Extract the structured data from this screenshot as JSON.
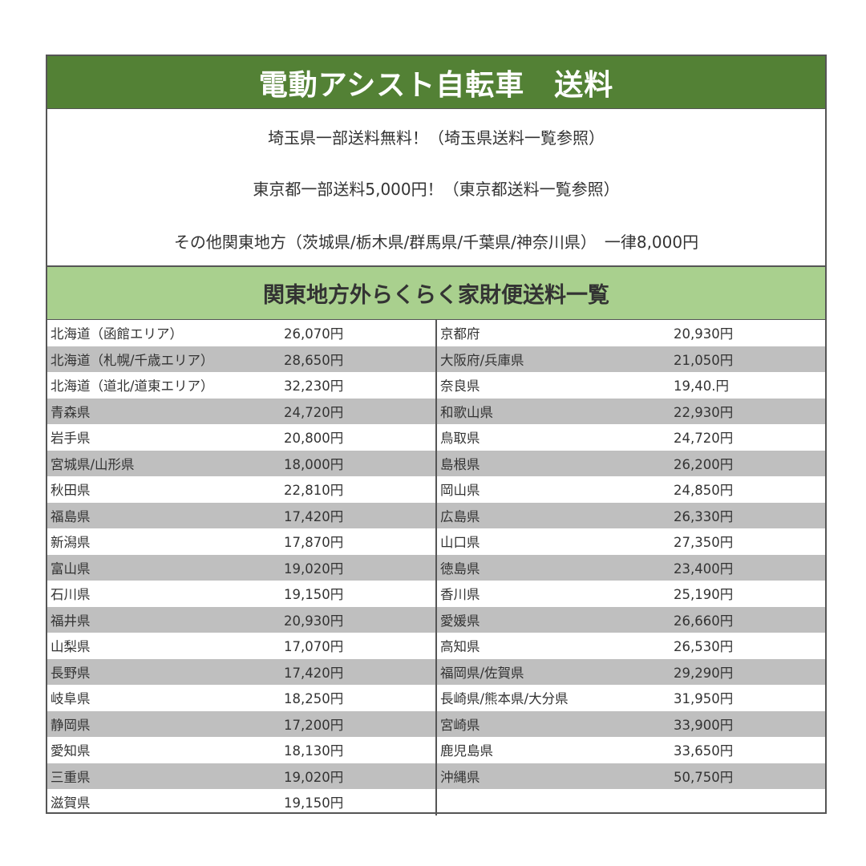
{
  "title": "電動アシスト自転車　送料",
  "info": [
    "埼玉県一部送料無料！（埼玉県送料一覧参照）",
    "東京都一部送料5,000円！（東京都送料一覧参照）",
    "その他関東地方（茨城県/栃木県/群馬県/千葉県/神奈川県）　一律8,000円"
  ],
  "subtitle": "関東地方外らくらく家財便送料一覧",
  "colors": {
    "title_bg": "#538135",
    "subtitle_bg": "#a9d08e",
    "stripe": "#bfbfbf"
  },
  "left": [
    {
      "name": "北海道（函館エリア）",
      "price": "26,070円"
    },
    {
      "name": "北海道（札幌/千歳エリア）",
      "price": "28,650円"
    },
    {
      "name": "北海道（道北/道東エリア）",
      "price": "32,230円"
    },
    {
      "name": "青森県",
      "price": "24,720円"
    },
    {
      "name": "岩手県",
      "price": "20,800円"
    },
    {
      "name": "宮城県/山形県",
      "price": "18,000円"
    },
    {
      "name": "秋田県",
      "price": "22,810円"
    },
    {
      "name": "福島県",
      "price": "17,420円"
    },
    {
      "name": "新潟県",
      "price": "17,870円"
    },
    {
      "name": "富山県",
      "price": "19,020円"
    },
    {
      "name": "石川県",
      "price": "19,150円"
    },
    {
      "name": "福井県",
      "price": "20,930円"
    },
    {
      "name": "山梨県",
      "price": "17,070円"
    },
    {
      "name": "長野県",
      "price": "17,420円"
    },
    {
      "name": "岐阜県",
      "price": "18,250円"
    },
    {
      "name": "静岡県",
      "price": "17,200円"
    },
    {
      "name": "愛知県",
      "price": "18,130円"
    },
    {
      "name": "三重県",
      "price": "19,020円"
    },
    {
      "name": "滋賀県",
      "price": "19,150円"
    }
  ],
  "right": [
    {
      "name": "京都府",
      "price": "20,930円"
    },
    {
      "name": "大阪府/兵庫県",
      "price": "21,050円"
    },
    {
      "name": "奈良県",
      "price": "19,40.円"
    },
    {
      "name": "和歌山県",
      "price": "22,930円"
    },
    {
      "name": "鳥取県",
      "price": "24,720円"
    },
    {
      "name": "島根県",
      "price": "26,200円"
    },
    {
      "name": "岡山県",
      "price": "24,850円"
    },
    {
      "name": "広島県",
      "price": "26,330円"
    },
    {
      "name": "山口県",
      "price": "27,350円"
    },
    {
      "name": "徳島県",
      "price": "23,400円"
    },
    {
      "name": "香川県",
      "price": "25,190円"
    },
    {
      "name": "愛媛県",
      "price": "26,660円"
    },
    {
      "name": "高知県",
      "price": "26,530円"
    },
    {
      "name": "福岡県/佐賀県",
      "price": "29,290円"
    },
    {
      "name": "長崎県/熊本県/大分県",
      "price": "31,950円"
    },
    {
      "name": "宮崎県",
      "price": "33,900円"
    },
    {
      "name": "鹿児島県",
      "price": "33,650円"
    },
    {
      "name": "沖縄県",
      "price": "50,750円"
    }
  ]
}
